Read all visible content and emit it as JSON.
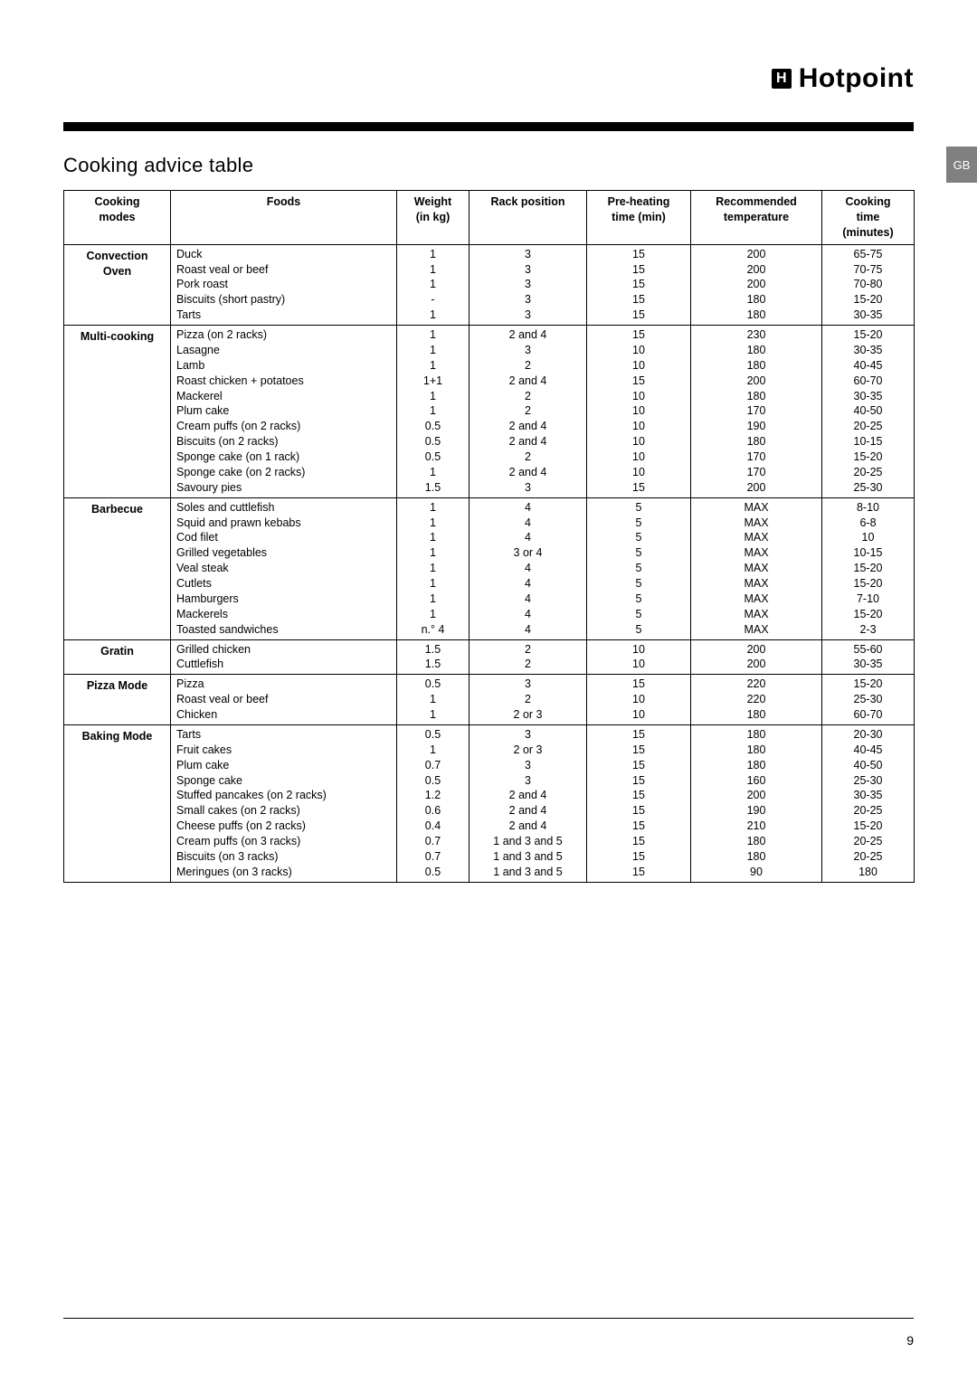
{
  "brand": {
    "mark": "H",
    "name": "Hotpoint"
  },
  "locale_tab": "GB",
  "title": "Cooking advice table",
  "page_number": "9",
  "table": {
    "columns": [
      "Cooking\nmodes",
      "Foods",
      "Weight\n(in kg)",
      "Rack position",
      "Pre-heating\ntime (min)",
      "Recommended\ntemperature",
      "Cooking\ntime\n(minutes)"
    ],
    "groups": [
      {
        "mode": "Convection\nOven",
        "rows": [
          [
            "Duck",
            "1",
            "3",
            "15",
            "200",
            "65-75"
          ],
          [
            "Roast veal or beef",
            "1",
            "3",
            "15",
            "200",
            "70-75"
          ],
          [
            "Pork roast",
            "1",
            "3",
            "15",
            "200",
            "70-80"
          ],
          [
            "Biscuits (short pastry)",
            "-",
            "3",
            "15",
            "180",
            "15-20"
          ],
          [
            "Tarts",
            "1",
            "3",
            "15",
            "180",
            "30-35"
          ]
        ]
      },
      {
        "mode": "Multi-cooking",
        "rows": [
          [
            "Pizza (on 2 racks)",
            "1",
            "2 and 4",
            "15",
            "230",
            "15-20"
          ],
          [
            "Lasagne",
            "1",
            "3",
            "10",
            "180",
            "30-35"
          ],
          [
            "Lamb",
            "1",
            "2",
            "10",
            "180",
            "40-45"
          ],
          [
            "Roast chicken + potatoes",
            "1+1",
            "2 and 4",
            "15",
            "200",
            "60-70"
          ],
          [
            "Mackerel",
            "1",
            "2",
            "10",
            "180",
            "30-35"
          ],
          [
            "Plum cake",
            "1",
            "2",
            "10",
            "170",
            "40-50"
          ],
          [
            "Cream puffs (on 2 racks)",
            "0.5",
            "2 and 4",
            "10",
            "190",
            "20-25"
          ],
          [
            "Biscuits (on 2 racks)",
            "0.5",
            "2 and 4",
            "10",
            "180",
            "10-15"
          ],
          [
            "Sponge cake (on 1 rack)",
            "0.5",
            "2",
            "10",
            "170",
            "15-20"
          ],
          [
            "Sponge cake (on 2 racks)",
            "1",
            "2 and 4",
            "10",
            "170",
            "20-25"
          ],
          [
            "Savoury pies",
            "1.5",
            "3",
            "15",
            "200",
            "25-30"
          ]
        ]
      },
      {
        "mode": "Barbecue",
        "rows": [
          [
            "Soles and cuttlefish",
            "1",
            "4",
            "5",
            "MAX",
            "8-10"
          ],
          [
            "Squid and prawn kebabs",
            "1",
            "4",
            "5",
            "MAX",
            "6-8"
          ],
          [
            "Cod filet",
            "1",
            "4",
            "5",
            "MAX",
            "10"
          ],
          [
            "Grilled vegetables",
            "1",
            "3 or 4",
            "5",
            "MAX",
            "10-15"
          ],
          [
            "Veal steak",
            "1",
            "4",
            "5",
            "MAX",
            "15-20"
          ],
          [
            "Cutlets",
            "1",
            "4",
            "5",
            "MAX",
            "15-20"
          ],
          [
            "Hamburgers",
            "1",
            "4",
            "5",
            "MAX",
            "7-10"
          ],
          [
            "Mackerels",
            "1",
            "4",
            "5",
            "MAX",
            "15-20"
          ],
          [
            "Toasted sandwiches",
            "n.° 4",
            "4",
            "5",
            "MAX",
            "2-3"
          ]
        ]
      },
      {
        "mode": "Gratin",
        "rows": [
          [
            "Grilled chicken",
            "1.5",
            "2",
            "10",
            "200",
            "55-60"
          ],
          [
            "Cuttlefish",
            "1.5",
            "2",
            "10",
            "200",
            "30-35"
          ]
        ]
      },
      {
        "mode": "Pizza Mode",
        "rows": [
          [
            "Pizza",
            "0.5",
            "3",
            "15",
            "220",
            "15-20"
          ],
          [
            "Roast veal or beef",
            "1",
            "2",
            "10",
            "220",
            "25-30"
          ],
          [
            "Chicken",
            "1",
            "2 or 3",
            "10",
            "180",
            "60-70"
          ]
        ]
      },
      {
        "mode": "Baking Mode",
        "rows": [
          [
            "Tarts",
            "0.5",
            "3",
            "15",
            "180",
            "20-30"
          ],
          [
            "Fruit cakes",
            "1",
            "2 or 3",
            "15",
            "180",
            "40-45"
          ],
          [
            "Plum cake",
            "0.7",
            "3",
            "15",
            "180",
            "40-50"
          ],
          [
            "Sponge cake",
            "0.5",
            "3",
            "15",
            "160",
            "25-30"
          ],
          [
            "Stuffed pancakes (on 2 racks)",
            "1.2",
            "2 and 4",
            "15",
            "200",
            "30-35"
          ],
          [
            "Small cakes (on 2 racks)",
            "0.6",
            "2 and 4",
            "15",
            "190",
            "20-25"
          ],
          [
            "Cheese puffs (on 2 racks)",
            "0.4",
            "2 and 4",
            "15",
            "210",
            "15-20"
          ],
          [
            "Cream puffs (on 3 racks)",
            "0.7",
            "1 and 3 and 5",
            "15",
            "180",
            "20-25"
          ],
          [
            "Biscuits (on 3 racks)",
            "0.7",
            "1 and 3 and 5",
            "15",
            "180",
            "20-25"
          ],
          [
            "Meringues (on 3 racks)",
            "0.5",
            "1 and 3 and 5",
            "15",
            "90",
            "180"
          ]
        ]
      }
    ]
  }
}
